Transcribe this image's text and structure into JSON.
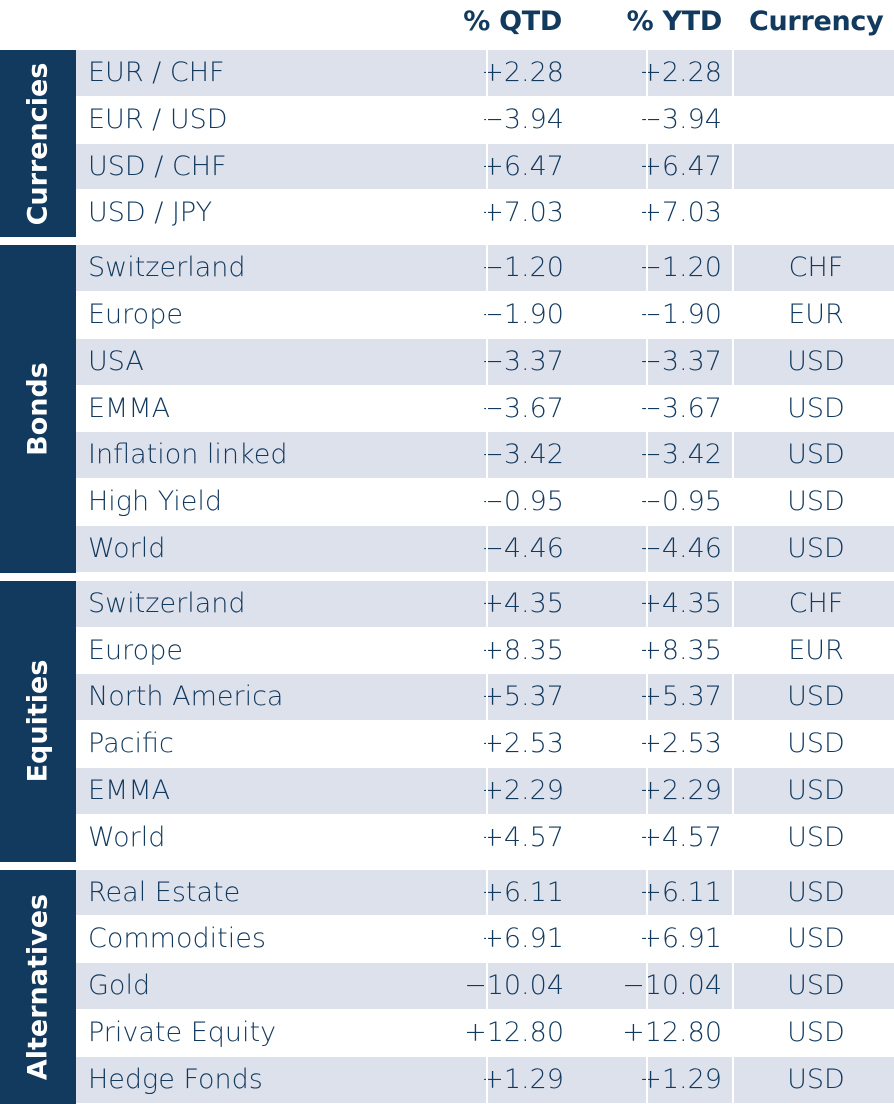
{
  "header": {
    "qtd": "% QTD",
    "ytd": "% YTD",
    "currency": "Currency"
  },
  "chart_data": {
    "type": "table",
    "columns": [
      "% QTD",
      "% YTD",
      "Currency"
    ],
    "groups": [
      {
        "label": "Currencies",
        "rows": [
          {
            "name": "EUR / CHF",
            "qtd": "+2.28",
            "ytd": "+2.28",
            "currency": ""
          },
          {
            "name": "EUR / USD",
            "qtd": "−3.94",
            "ytd": "−3.94",
            "currency": ""
          },
          {
            "name": "USD / CHF",
            "qtd": "+6.47",
            "ytd": "+6.47",
            "currency": ""
          },
          {
            "name": "USD / JPY",
            "qtd": "+7.03",
            "ytd": "+7.03",
            "currency": ""
          }
        ]
      },
      {
        "label": "Bonds",
        "rows": [
          {
            "name": "Switzerland",
            "qtd": "−1.20",
            "ytd": "−1.20",
            "currency": "CHF"
          },
          {
            "name": "Europe",
            "qtd": "−1.90",
            "ytd": "−1.90",
            "currency": "EUR"
          },
          {
            "name": "USA",
            "qtd": "−3.37",
            "ytd": "−3.37",
            "currency": "USD"
          },
          {
            "name": "EMMA",
            "qtd": "−3.67",
            "ytd": "−3.67",
            "currency": "USD"
          },
          {
            "name": "Inflation linked",
            "qtd": "−3.42",
            "ytd": "−3.42",
            "currency": "USD"
          },
          {
            "name": "High Yield",
            "qtd": "−0.95",
            "ytd": "−0.95",
            "currency": "USD"
          },
          {
            "name": "World",
            "qtd": "−4.46",
            "ytd": "−4.46",
            "currency": "USD"
          }
        ]
      },
      {
        "label": "Equities",
        "rows": [
          {
            "name": "Switzerland",
            "qtd": "+4.35",
            "ytd": "+4.35",
            "currency": "CHF"
          },
          {
            "name": "Europe",
            "qtd": "+8.35",
            "ytd": "+8.35",
            "currency": "EUR"
          },
          {
            "name": "North America",
            "qtd": "+5.37",
            "ytd": "+5.37",
            "currency": "USD"
          },
          {
            "name": "Pacific",
            "qtd": "+2.53",
            "ytd": "+2.53",
            "currency": "USD"
          },
          {
            "name": "EMMA",
            "qtd": "+2.29",
            "ytd": "+2.29",
            "currency": "USD"
          },
          {
            "name": "World",
            "qtd": "+4.57",
            "ytd": "+4.57",
            "currency": "USD"
          }
        ]
      },
      {
        "label": "Alternatives",
        "rows": [
          {
            "name": "Real Estate",
            "qtd": "+6.11",
            "ytd": "+6.11",
            "currency": "USD"
          },
          {
            "name": "Commodities",
            "qtd": "+6.91",
            "ytd": "+6.91",
            "currency": "USD"
          },
          {
            "name": "Gold",
            "qtd": "−10.04",
            "ytd": "−10.04",
            "currency": "USD"
          },
          {
            "name": "Private Equity",
            "qtd": "+12.80",
            "ytd": "+12.80",
            "currency": "USD"
          },
          {
            "name": "Hedge Fonds",
            "qtd": "+1.29",
            "ytd": "+1.29",
            "currency": "USD"
          }
        ]
      }
    ]
  },
  "colors": {
    "navy": "#12395e",
    "row_shade": "#dde1ec"
  }
}
